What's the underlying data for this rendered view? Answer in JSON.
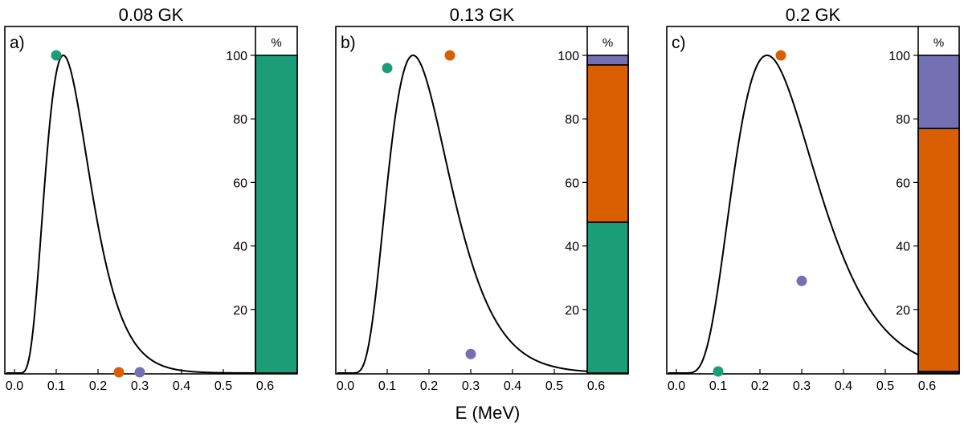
{
  "figure": {
    "xlabel": "E (MeV)",
    "colors": {
      "green": "#1b9e77",
      "orange": "#d95f02",
      "purple": "#7570b3",
      "curve": "#000000"
    }
  },
  "chart_data": [
    {
      "type": "line",
      "panel_letter": "a)",
      "title": "0.08 GK",
      "xlabel": "",
      "xlim": [
        -0.02,
        0.6
      ],
      "xticks": [
        "0.0",
        "0.1",
        "0.2",
        "0.3",
        "0.4",
        "0.5",
        "0.6"
      ],
      "ylim": [
        0,
        100
      ],
      "curve": {
        "peak_E": 0.117,
        "peak_value": 100,
        "temperature_GK": 0.08
      },
      "points": [
        {
          "E": 0.1,
          "value": 100,
          "color": "green"
        },
        {
          "E": 0.25,
          "value": 0,
          "color": "orange"
        },
        {
          "E": 0.3,
          "value": 0,
          "color": "purple"
        }
      ],
      "bar": {
        "label": "%",
        "yticks": [
          "20",
          "40",
          "60",
          "80",
          "100"
        ],
        "segments": [
          {
            "color": "green",
            "value": 100
          },
          {
            "color": "orange",
            "value": 0
          },
          {
            "color": "purple",
            "value": 0
          }
        ]
      }
    },
    {
      "type": "line",
      "panel_letter": "b)",
      "title": "0.13 GK",
      "xlabel": "",
      "xlim": [
        -0.02,
        0.6
      ],
      "xticks": [
        "0.0",
        "0.1",
        "0.2",
        "0.3",
        "0.4",
        "0.5",
        "0.6"
      ],
      "ylim": [
        0,
        100
      ],
      "curve": {
        "peak_E": 0.162,
        "peak_value": 100,
        "temperature_GK": 0.13
      },
      "points": [
        {
          "E": 0.1,
          "value": 96,
          "color": "green"
        },
        {
          "E": 0.25,
          "value": 100,
          "color": "orange"
        },
        {
          "E": 0.3,
          "value": 6,
          "color": "purple"
        }
      ],
      "bar": {
        "label": "%",
        "yticks": [
          "20",
          "40",
          "60",
          "80",
          "100"
        ],
        "segments": [
          {
            "color": "green",
            "value": 47.5
          },
          {
            "color": "orange",
            "value": 49.5
          },
          {
            "color": "purple",
            "value": 3
          }
        ]
      }
    },
    {
      "type": "line",
      "panel_letter": "c)",
      "title": "0.2 GK",
      "xlabel": "",
      "xlim": [
        -0.02,
        0.6
      ],
      "xticks": [
        "0.0",
        "0.1",
        "0.2",
        "0.3",
        "0.4",
        "0.5",
        "0.6"
      ],
      "ylim": [
        0,
        100
      ],
      "curve": {
        "peak_E": 0.217,
        "peak_value": 100,
        "temperature_GK": 0.2
      },
      "points": [
        {
          "E": 0.1,
          "value": 0.5,
          "color": "green"
        },
        {
          "E": 0.25,
          "value": 100,
          "color": "orange"
        },
        {
          "E": 0.3,
          "value": 29,
          "color": "purple"
        }
      ],
      "bar": {
        "label": "%",
        "yticks": [
          "20",
          "40",
          "60",
          "80",
          "100"
        ],
        "segments": [
          {
            "color": "green",
            "value": 0.5
          },
          {
            "color": "orange",
            "value": 76.5
          },
          {
            "color": "purple",
            "value": 23
          }
        ]
      }
    }
  ]
}
